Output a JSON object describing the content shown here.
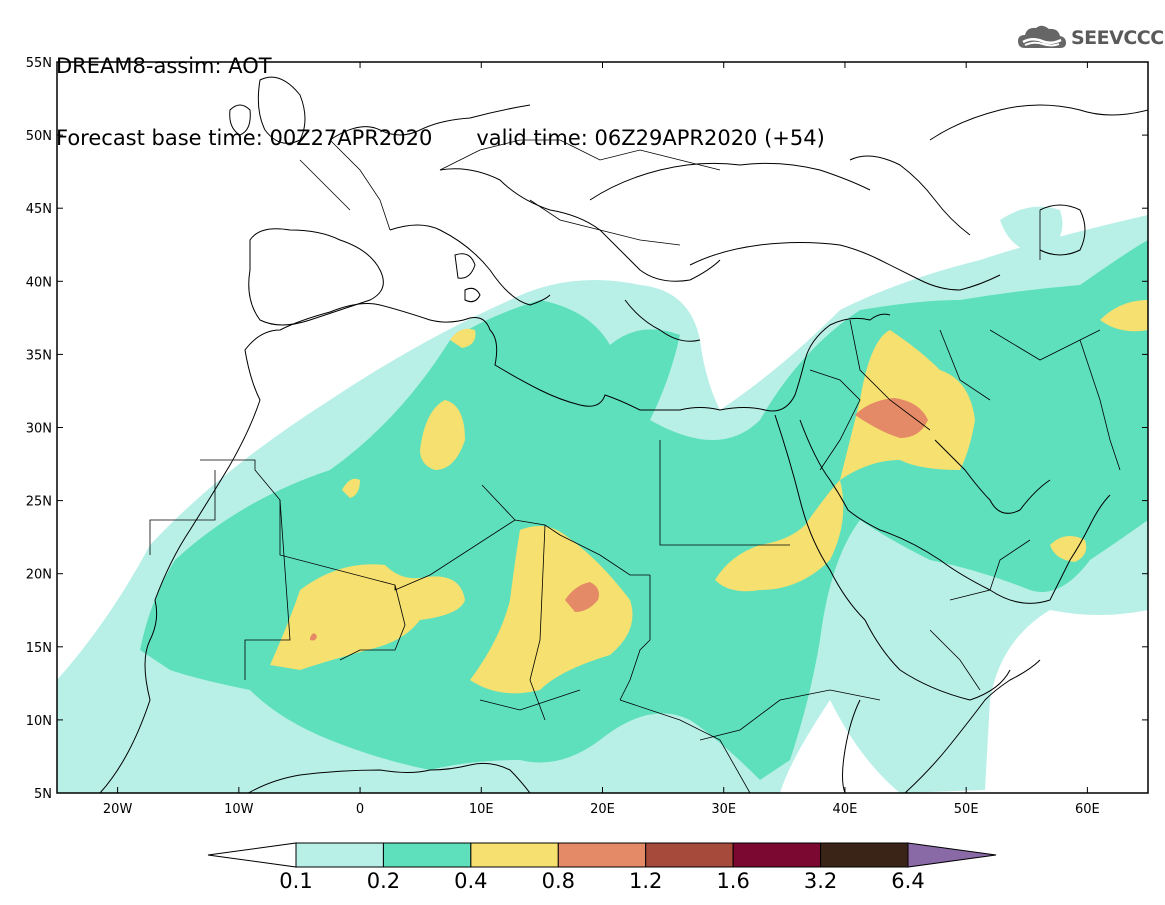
{
  "title": {
    "line1": "DREAM8-assim: AOT",
    "base_time": "Forecast base time: 00Z27APR2020",
    "valid_time": "valid time: 06Z29APR2020 (+54)"
  },
  "logo": {
    "icon": "cloud-logo-icon",
    "text": "SEEVCCC"
  },
  "map": {
    "lon_range": [
      -25,
      65
    ],
    "lat_range": [
      5,
      55
    ],
    "lat_ticks": [
      "55N",
      "50N",
      "45N",
      "40N",
      "35N",
      "30N",
      "25N",
      "20N",
      "15N",
      "10N",
      "5N"
    ],
    "lon_ticks": [
      "20W",
      "10W",
      "0",
      "10E",
      "20E",
      "30E",
      "40E",
      "50E",
      "60E"
    ]
  },
  "colorbar": {
    "labels": [
      "0.1",
      "0.2",
      "0.4",
      "0.8",
      "1.2",
      "1.6",
      "3.2",
      "6.4"
    ],
    "colors": [
      "#b8f0e8",
      "#5ee0bc",
      "#f5e070",
      "#e58a66",
      "#a64a3c",
      "#7a0830",
      "#3a2418",
      "#8a6aa6"
    ]
  },
  "levels": {
    "l1": "#b8f0e8",
    "l2": "#5ee0bc",
    "l3": "#f5e070",
    "l4": "#e58a66"
  }
}
